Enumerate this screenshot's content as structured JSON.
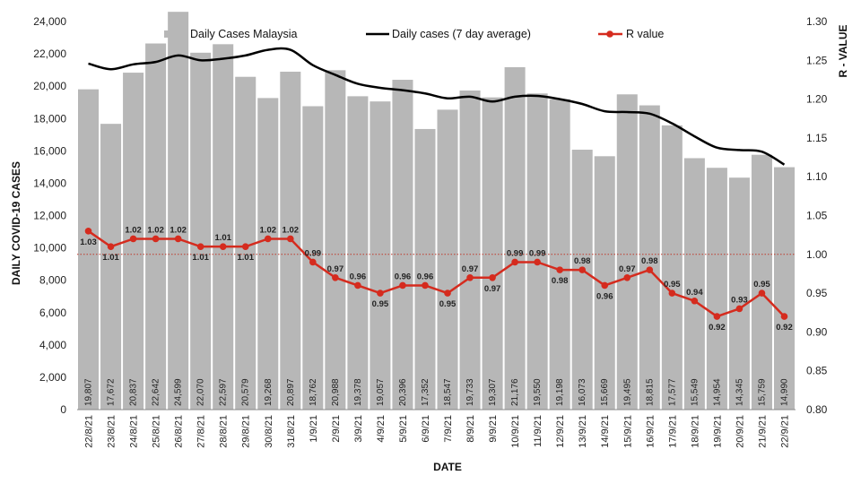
{
  "chart_data": {
    "type": "bar",
    "title": "",
    "xlabel": "DATE",
    "ylabel": "DAILY COVID-19 CASES",
    "y2label": "R - VALUE",
    "ylim": [
      0,
      24000
    ],
    "yticks": [
      "0",
      "2,000",
      "4,000",
      "6,000",
      "8,000",
      "10,000",
      "12,000",
      "14,000",
      "16,000",
      "18,000",
      "20,000",
      "22,000",
      "24,000"
    ],
    "y2lim": [
      0.8,
      1.3
    ],
    "y2ticks": [
      "0.80",
      "0.85",
      "0.90",
      "0.95",
      "1.00",
      "1.05",
      "1.10",
      "1.15",
      "1.20",
      "1.25",
      "1.30"
    ],
    "r_threshold": 1.0,
    "categories": [
      "22/8/21",
      "23/8/21",
      "24/8/21",
      "25/8/21",
      "26/8/21",
      "27/8/21",
      "28/8/21",
      "29/8/21",
      "30/8/21",
      "31/8/21",
      "1/9/21",
      "2/9/21",
      "3/9/21",
      "4/9/21",
      "5/9/21",
      "6/9/21",
      "7/9/21",
      "8/9/21",
      "9/9/21",
      "10/9/21",
      "11/9/21",
      "12/9/21",
      "13/9/21",
      "14/9/21",
      "15/9/21",
      "16/9/21",
      "17/9/21",
      "18/9/21",
      "19/9/21",
      "20/9/21",
      "21/9/21",
      "22/9/21"
    ],
    "series": [
      {
        "name": "Daily Cases Malaysia",
        "type": "bar",
        "axis": "left",
        "color": "#b7b7b7",
        "values": [
          19807,
          17672,
          20837,
          22642,
          24599,
          22070,
          22597,
          20579,
          19268,
          20897,
          18762,
          20988,
          19378,
          19057,
          20396,
          17352,
          18547,
          19733,
          19307,
          21176,
          19550,
          19198,
          16073,
          15669,
          19495,
          18815,
          17577,
          15549,
          14954,
          14345,
          15759,
          14990
        ],
        "value_labels": [
          "19,807",
          "17,672",
          "20,837",
          "22,642",
          "24,599",
          "22,070",
          "22,597",
          "20,579",
          "19,268",
          "20,897",
          "18,762",
          "20,988",
          "19,378",
          "19,057",
          "20,396",
          "17,352",
          "18,547",
          "19,733",
          "19,307",
          "21,176",
          "19,550",
          "19,198",
          "16,073",
          "15,669",
          "19,495",
          "18,815",
          "17,577",
          "15,549",
          "14,954",
          "14,345",
          "15,759",
          "14,990"
        ]
      },
      {
        "name": "Daily cases (7 day average)",
        "type": "line",
        "axis": "left",
        "color": "#000000",
        "values": [
          21400,
          21050,
          21350,
          21500,
          21900,
          21600,
          21700,
          21900,
          22250,
          22250,
          21300,
          20700,
          20150,
          19900,
          19750,
          19550,
          19250,
          19350,
          19050,
          19350,
          19400,
          19200,
          18900,
          18450,
          18400,
          18300,
          17700,
          16900,
          16200,
          16050,
          15950,
          15150
        ]
      },
      {
        "name": "R value",
        "type": "line",
        "axis": "right",
        "color": "#d52b1e",
        "values": [
          1.03,
          1.01,
          1.02,
          1.02,
          1.02,
          1.01,
          1.01,
          1.01,
          1.02,
          1.02,
          0.99,
          0.97,
          0.96,
          0.95,
          0.96,
          0.96,
          0.95,
          0.97,
          0.97,
          0.99,
          0.99,
          0.98,
          0.98,
          0.96,
          0.97,
          0.98,
          0.95,
          0.94,
          0.92,
          0.93,
          0.95,
          0.92
        ],
        "value_labels": [
          "1.03",
          "1.01",
          "1.02",
          "1.02",
          "1.02",
          "1.01",
          "1.01",
          "1.01",
          "1.02",
          "1.02",
          "0.99",
          "0.97",
          "0.96",
          "0.95",
          "0.96",
          "0.96",
          "0.95",
          "0.97",
          "0.97",
          "0.99",
          "0.99",
          "0.98",
          "0.98",
          "0.96",
          "0.97",
          "0.98",
          "0.95",
          "0.94",
          "0.92",
          "0.93",
          "0.95",
          "0.92"
        ]
      }
    ],
    "legend_position": "top",
    "grid": false
  }
}
